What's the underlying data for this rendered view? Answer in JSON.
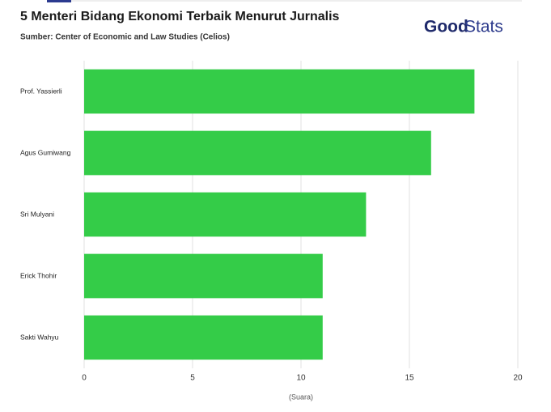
{
  "chart_data": {
    "type": "barh",
    "title": "5 Menteri Bidang Ekonomi Terbaik Menurut Jurnalis",
    "subtitle": "Sumber: Center of Economic and Law Studies (Celios)",
    "logo": {
      "bold": "Good",
      "light": "Stats"
    },
    "categories": [
      "Prof. Yassierli",
      "Agus Gumiwang",
      "Sri Mulyani",
      "Erick Thohir",
      "Sakti Wahyu"
    ],
    "values": [
      18,
      16,
      13,
      11,
      11
    ],
    "color": "#34cc48",
    "xlabel": "(Suara)",
    "xlim": [
      0,
      20
    ],
    "xticks": [
      0,
      5,
      10,
      15,
      20
    ],
    "grid": true
  }
}
